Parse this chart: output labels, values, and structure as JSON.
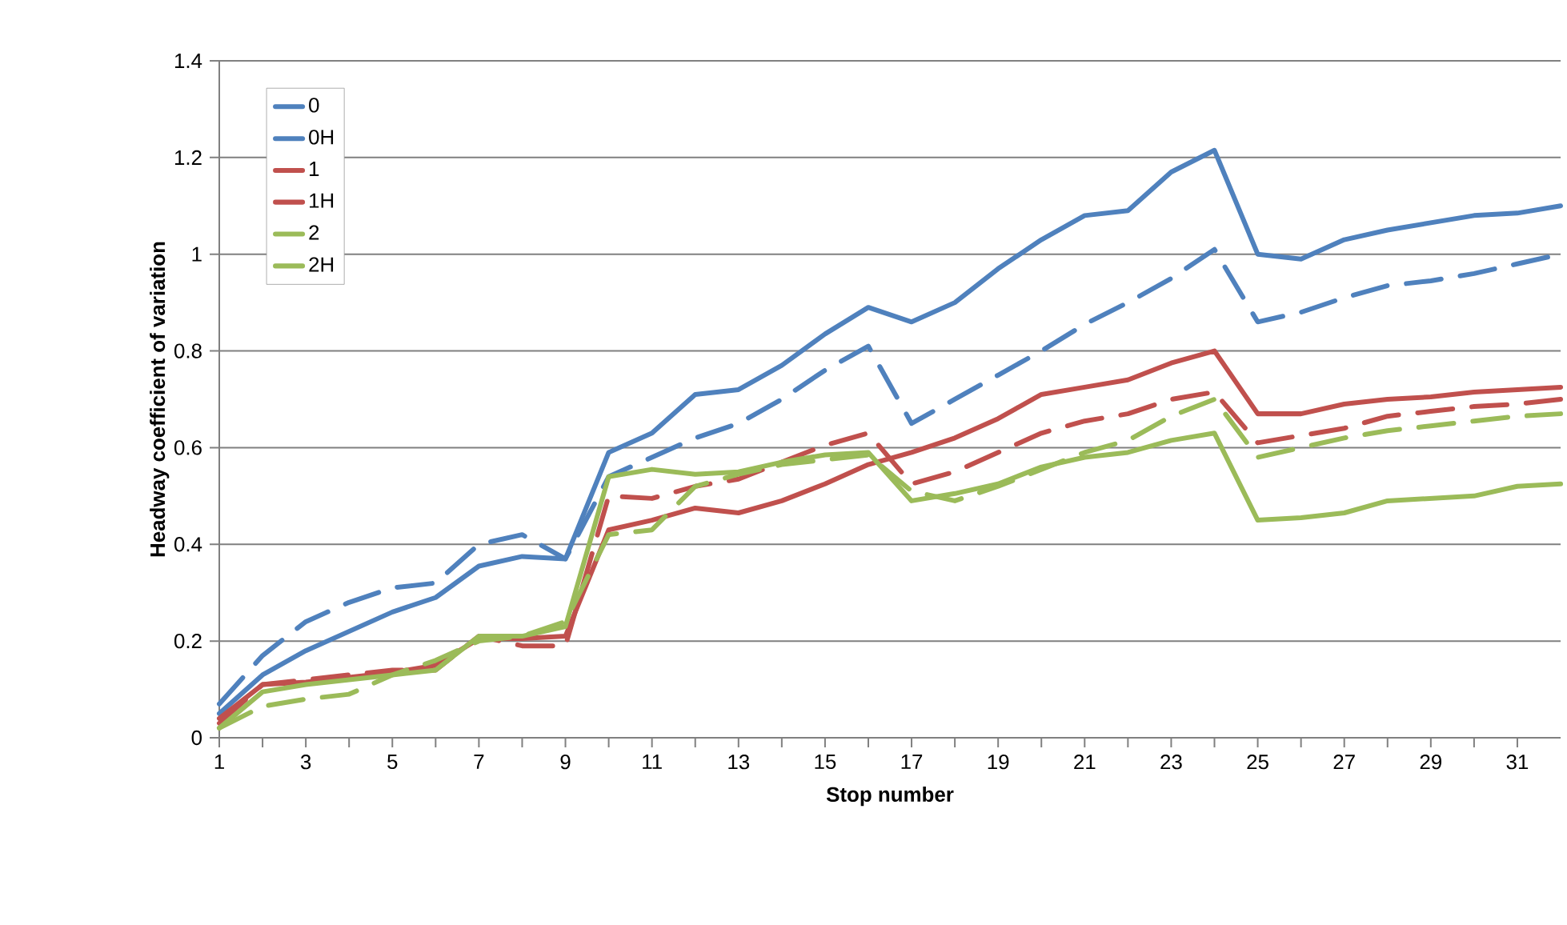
{
  "chart_data": {
    "type": "line",
    "xlabel": "Stop number",
    "ylabel": "Headway coefficient of variation",
    "x": [
      1,
      2,
      3,
      4,
      5,
      6,
      7,
      8,
      9,
      10,
      11,
      12,
      13,
      14,
      15,
      16,
      17,
      18,
      19,
      20,
      21,
      22,
      23,
      24,
      25,
      26,
      27,
      28,
      29,
      30,
      31,
      32
    ],
    "xlim": [
      1,
      32
    ],
    "xticks": [
      1,
      3,
      5,
      7,
      9,
      11,
      13,
      15,
      17,
      19,
      21,
      23,
      25,
      27,
      29,
      31
    ],
    "ylim": [
      0,
      1.4
    ],
    "yticks": [
      0,
      {
        "value": 0.2,
        "label": "0.2"
      },
      {
        "value": 0.4,
        "label": "0.4"
      },
      {
        "value": 0.6,
        "label": "0.6"
      },
      {
        "value": 0.8,
        "label": "0.8"
      },
      1,
      {
        "value": 1.2,
        "label": "1.2"
      },
      {
        "value": 1.4,
        "label": "1.4"
      }
    ],
    "grid": "y",
    "legend": "top left",
    "marker": "none",
    "series": [
      {
        "name": "0",
        "color": "#4f81bd",
        "line_style": "solid",
        "values": [
          0.05,
          0.13,
          0.18,
          0.22,
          0.26,
          0.29,
          0.355,
          0.375,
          0.37,
          0.59,
          0.63,
          0.71,
          0.72,
          0.77,
          0.835,
          0.89,
          0.86,
          0.9,
          0.97,
          1.03,
          1.08,
          1.09,
          1.17,
          1.215,
          1.0,
          0.99,
          1.03,
          1.05,
          1.065,
          1.08,
          1.085,
          1.1
        ]
      },
      {
        "name": "0H",
        "color": "#4f81bd",
        "line_style": "dashed",
        "values": [
          0.07,
          0.17,
          0.24,
          0.28,
          0.31,
          0.32,
          0.4,
          0.42,
          0.37,
          0.54,
          0.58,
          0.62,
          0.65,
          0.7,
          0.76,
          0.81,
          0.65,
          0.7,
          0.75,
          0.8,
          0.855,
          0.9,
          0.95,
          1.01,
          0.86,
          0.88,
          0.91,
          0.935,
          0.945,
          0.96,
          0.98,
          1.0
        ]
      },
      {
        "name": "1",
        "color": "#c0504d",
        "line_style": "solid",
        "values": [
          0.04,
          0.11,
          0.115,
          0.125,
          0.135,
          0.15,
          0.205,
          0.205,
          0.21,
          0.43,
          0.45,
          0.475,
          0.465,
          0.49,
          0.525,
          0.565,
          0.59,
          0.62,
          0.66,
          0.71,
          0.725,
          0.74,
          0.775,
          0.8,
          0.67,
          0.67,
          0.69,
          0.7,
          0.705,
          0.715,
          0.72,
          0.725
        ]
      },
      {
        "name": "1H",
        "color": "#c0504d",
        "line_style": "dashed",
        "values": [
          0.03,
          0.11,
          0.12,
          0.13,
          0.14,
          0.14,
          0.21,
          0.19,
          0.19,
          0.5,
          0.495,
          0.52,
          0.535,
          0.57,
          0.605,
          0.63,
          0.525,
          0.55,
          0.59,
          0.63,
          0.655,
          0.67,
          0.7,
          0.715,
          0.61,
          0.625,
          0.64,
          0.665,
          0.675,
          0.685,
          0.69,
          0.7
        ]
      },
      {
        "name": "2",
        "color": "#9bbb59",
        "line_style": "solid",
        "values": [
          0.02,
          0.095,
          0.11,
          0.12,
          0.13,
          0.14,
          0.21,
          0.21,
          0.23,
          0.54,
          0.555,
          0.545,
          0.55,
          0.57,
          0.585,
          0.59,
          0.49,
          0.505,
          0.525,
          0.56,
          0.58,
          0.59,
          0.615,
          0.63,
          0.45,
          0.455,
          0.465,
          0.49,
          0.495,
          0.5,
          0.52,
          0.525
        ]
      },
      {
        "name": "2H",
        "color": "#9bbb59",
        "line_style": "dashed",
        "values": [
          0.02,
          0.065,
          0.08,
          0.09,
          0.13,
          0.16,
          0.2,
          0.21,
          0.24,
          0.42,
          0.43,
          0.52,
          0.545,
          0.565,
          0.575,
          0.585,
          0.51,
          0.49,
          0.52,
          0.555,
          0.59,
          0.615,
          0.665,
          0.7,
          0.58,
          0.6,
          0.62,
          0.635,
          0.645,
          0.655,
          0.665,
          0.67
        ]
      }
    ]
  }
}
